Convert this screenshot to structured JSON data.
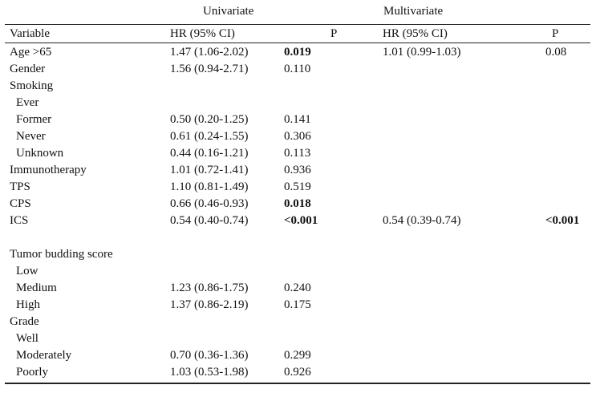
{
  "group_headers": {
    "univariate": "Univariate",
    "multivariate": "Multivariate"
  },
  "columns": {
    "variable": "Variable",
    "uni_hr": "HR (95% CI)",
    "uni_p": "P",
    "multi_hr": "HR (95% CI)",
    "multi_p": "P"
  },
  "rows": [
    {
      "variable": "Age >65",
      "indent": false,
      "uni_hr": "1.47 (1.06-2.02)",
      "uni_p": "0.019",
      "uni_p_bold": true,
      "multi_hr": "1.01 (0.99-1.03)",
      "multi_p": "0.08",
      "multi_p_bold": false
    },
    {
      "variable": "Gender",
      "indent": false,
      "uni_hr": "1.56 (0.94-2.71)",
      "uni_p": "0.110",
      "uni_p_bold": false,
      "multi_hr": "",
      "multi_p": "",
      "multi_p_bold": false
    },
    {
      "variable": "Smoking",
      "indent": false,
      "uni_hr": "",
      "uni_p": "",
      "uni_p_bold": false,
      "multi_hr": "",
      "multi_p": "",
      "multi_p_bold": false
    },
    {
      "variable": "Ever",
      "indent": true,
      "uni_hr": "",
      "uni_p": "",
      "uni_p_bold": false,
      "multi_hr": "",
      "multi_p": "",
      "multi_p_bold": false
    },
    {
      "variable": "Former",
      "indent": true,
      "uni_hr": "0.50 (0.20-1.25)",
      "uni_p": "0.141",
      "uni_p_bold": false,
      "multi_hr": "",
      "multi_p": "",
      "multi_p_bold": false
    },
    {
      "variable": "Never",
      "indent": true,
      "uni_hr": "0.61 (0.24-1.55)",
      "uni_p": "0.306",
      "uni_p_bold": false,
      "multi_hr": "",
      "multi_p": "",
      "multi_p_bold": false
    },
    {
      "variable": "Unknown",
      "indent": true,
      "uni_hr": "0.44 (0.16-1.21)",
      "uni_p": "0.113",
      "uni_p_bold": false,
      "multi_hr": "",
      "multi_p": "",
      "multi_p_bold": false
    },
    {
      "variable": "Immunotherapy",
      "indent": false,
      "uni_hr": "1.01 (0.72-1.41)",
      "uni_p": "0.936",
      "uni_p_bold": false,
      "multi_hr": "",
      "multi_p": "",
      "multi_p_bold": false
    },
    {
      "variable": "TPS",
      "indent": false,
      "uni_hr": "1.10 (0.81-1.49)",
      "uni_p": "0.519",
      "uni_p_bold": false,
      "multi_hr": "",
      "multi_p": "",
      "multi_p_bold": false
    },
    {
      "variable": "CPS",
      "indent": false,
      "uni_hr": "0.66 (0.46-0.93)",
      "uni_p": "0.018",
      "uni_p_bold": true,
      "multi_hr": "",
      "multi_p": "",
      "multi_p_bold": false
    },
    {
      "variable": "ICS",
      "indent": false,
      "uni_hr": "0.54 (0.40-0.74)",
      "uni_p": "<0.001",
      "uni_p_bold": true,
      "multi_hr": "0.54 (0.39-0.74)",
      "multi_p": "<0.001",
      "multi_p_bold": true
    },
    {
      "variable": "",
      "indent": false,
      "uni_hr": "",
      "uni_p": "",
      "uni_p_bold": false,
      "multi_hr": "",
      "multi_p": "",
      "multi_p_bold": false
    },
    {
      "variable": "Tumor budding score",
      "indent": false,
      "uni_hr": "",
      "uni_p": "",
      "uni_p_bold": false,
      "multi_hr": "",
      "multi_p": "",
      "multi_p_bold": false
    },
    {
      "variable": "Low",
      "indent": true,
      "uni_hr": "",
      "uni_p": "",
      "uni_p_bold": false,
      "multi_hr": "",
      "multi_p": "",
      "multi_p_bold": false
    },
    {
      "variable": "Medium",
      "indent": true,
      "uni_hr": "1.23 (0.86-1.75)",
      "uni_p": "0.240",
      "uni_p_bold": false,
      "multi_hr": "",
      "multi_p": "",
      "multi_p_bold": false
    },
    {
      "variable": "High",
      "indent": true,
      "uni_hr": "1.37 (0.86-2.19)",
      "uni_p": "0.175",
      "uni_p_bold": false,
      "multi_hr": "",
      "multi_p": "",
      "multi_p_bold": false
    },
    {
      "variable": "Grade",
      "indent": false,
      "uni_hr": "",
      "uni_p": "",
      "uni_p_bold": false,
      "multi_hr": "",
      "multi_p": "",
      "multi_p_bold": false
    },
    {
      "variable": "Well",
      "indent": true,
      "uni_hr": "",
      "uni_p": "",
      "uni_p_bold": false,
      "multi_hr": "",
      "multi_p": "",
      "multi_p_bold": false
    },
    {
      "variable": "Moderately",
      "indent": true,
      "uni_hr": "0.70 (0.36-1.36)",
      "uni_p": "0.299",
      "uni_p_bold": false,
      "multi_hr": "",
      "multi_p": "",
      "multi_p_bold": false
    },
    {
      "variable": "Poorly",
      "indent": true,
      "uni_hr": "1.03 (0.53-1.98)",
      "uni_p": "0.926",
      "uni_p_bold": false,
      "multi_hr": "",
      "multi_p": "",
      "multi_p_bold": false
    }
  ]
}
